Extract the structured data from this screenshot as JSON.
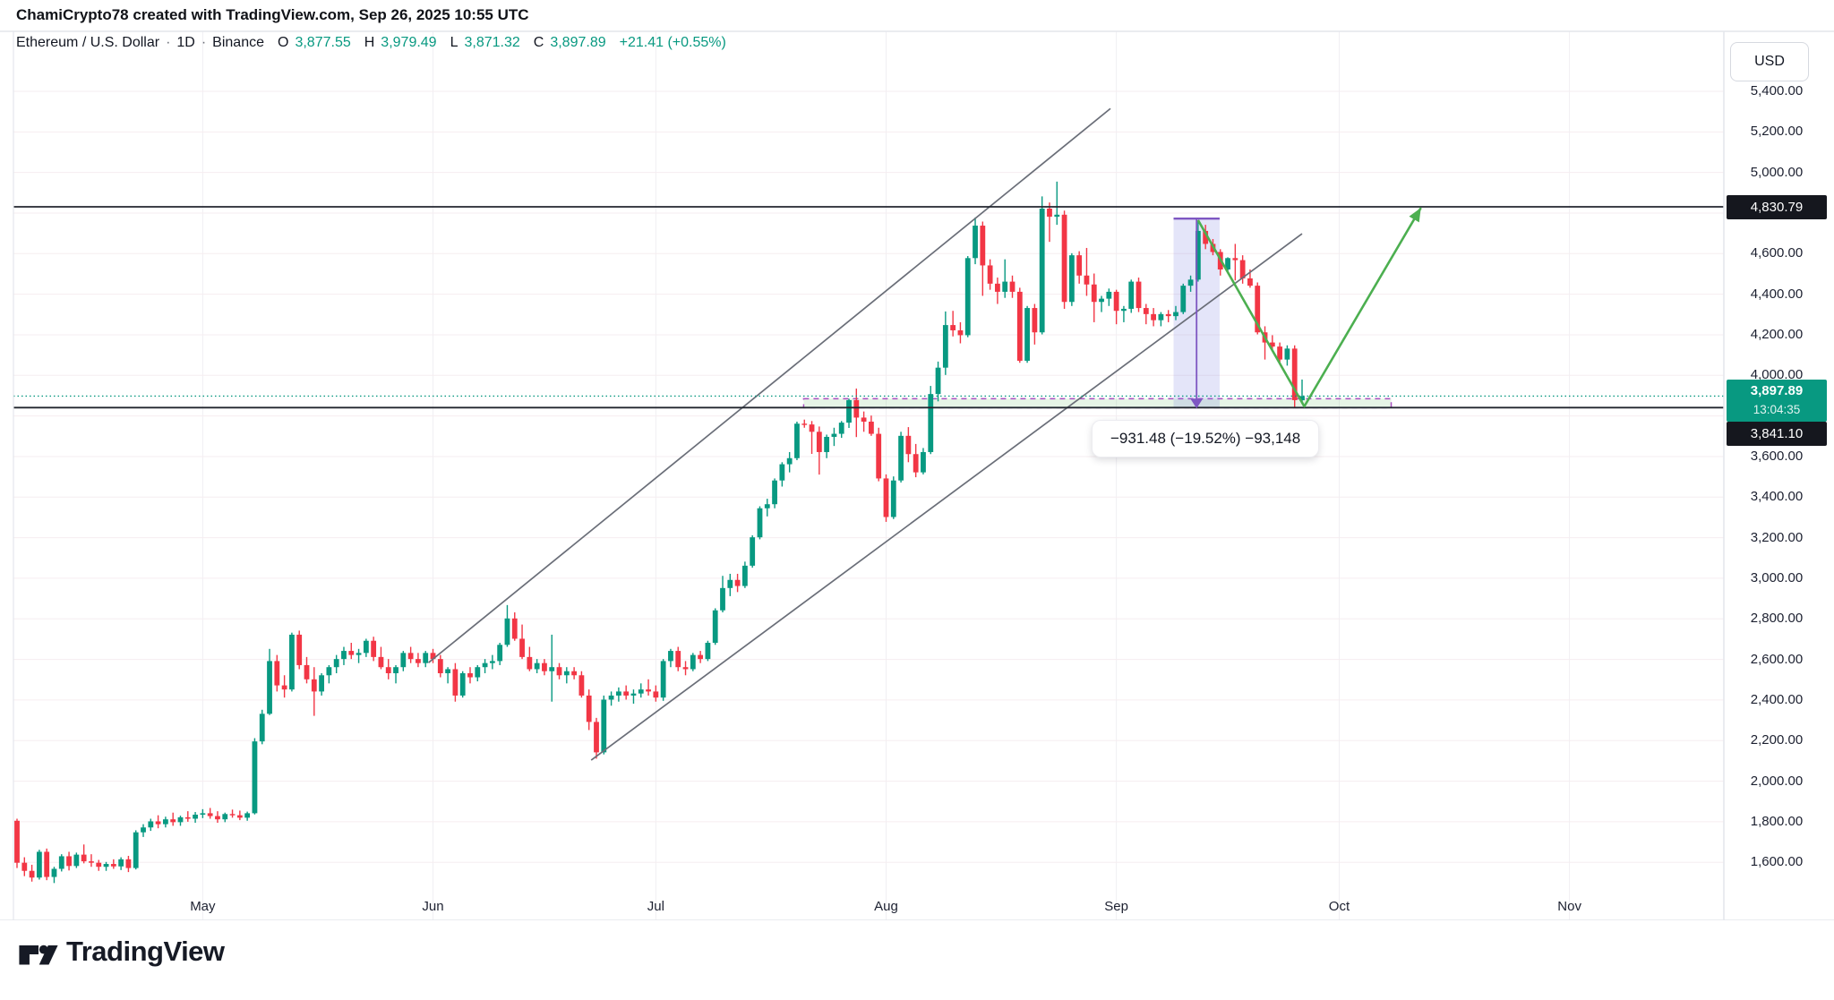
{
  "attribution": {
    "text": "ChamiCrypto78 created with TradingView.com, Sep 26, 2025 10:55 UTC"
  },
  "legend": {
    "symbol": "Ethereum / U.S. Dollar",
    "separator": "·",
    "interval": "1D",
    "exchange": "Binance",
    "o_label": "O",
    "o_value": "3,877.55",
    "h_label": "H",
    "h_value": "3,979.49",
    "l_label": "L",
    "l_value": "3,871.32",
    "c_label": "C",
    "c_value": "3,897.89",
    "change": "+21.41 (+0.55%)"
  },
  "price_axis": {
    "currency": "USD",
    "labels": [
      {
        "label": "5,400.00",
        "value": 5400
      },
      {
        "label": "5,200.00",
        "value": 5200
      },
      {
        "label": "5,000.00",
        "value": 5000
      },
      {
        "label": "4,600.00",
        "value": 4600
      },
      {
        "label": "4,400.00",
        "value": 4400
      },
      {
        "label": "4,200.00",
        "value": 4200
      },
      {
        "label": "4,000.00",
        "value": 4000
      },
      {
        "label": "3,600.00",
        "value": 3600
      },
      {
        "label": "3,400.00",
        "value": 3400
      },
      {
        "label": "3,200.00",
        "value": 3200
      },
      {
        "label": "3,000.00",
        "value": 3000
      },
      {
        "label": "2,800.00",
        "value": 2800
      },
      {
        "label": "2,600.00",
        "value": 2600
      },
      {
        "label": "2,400.00",
        "value": 2400
      },
      {
        "label": "2,200.00",
        "value": 2200
      },
      {
        "label": "2,000.00",
        "value": 2000
      },
      {
        "label": "1,800.00",
        "value": 1800
      },
      {
        "label": "1,600.00",
        "value": 1600
      }
    ],
    "badges": {
      "upper_line": "4,830.79",
      "last_price": "3,897.89",
      "countdown": "13:04:35",
      "lower_line": "3,841.10"
    }
  },
  "time_axis": {
    "months": [
      {
        "label": "May",
        "index": 25
      },
      {
        "label": "Jun",
        "index": 56
      },
      {
        "label": "Jul",
        "index": 86
      },
      {
        "label": "Aug",
        "index": 117
      },
      {
        "label": "Sep",
        "index": 148
      },
      {
        "label": "Oct",
        "index": 178
      },
      {
        "label": "Nov",
        "index": 209
      }
    ]
  },
  "tooltip": {
    "text": "−931.48 (−19.52%) −93,148"
  },
  "footer": {
    "brand": "TradingView",
    "logo_icon": "tradingview-logo"
  },
  "chart_data": {
    "type": "candlestick",
    "title": "Ethereum / U.S. Dollar",
    "interval": "1D",
    "exchange": "Binance",
    "start_date": "2025-04-06",
    "end_date": "2025-09-26",
    "ylim": [
      1314,
      5695
    ],
    "grid": {
      "h_step": 200,
      "h_min": 1600,
      "h_max": 5400
    },
    "legend_position": "top-left",
    "colors": {
      "up": "#089981",
      "down": "#f23645",
      "grid_h": "#f6edf0",
      "grid_v": "#f0eff3",
      "border": "#e4e6ec",
      "black_line": "#22262f",
      "trend": "#6a6e78",
      "projection": "#4caf50",
      "zone_fill": "rgba(76,175,80,0.14)",
      "zone_border": "#a84fc0",
      "measure_fill": "rgba(108,112,222,0.18)",
      "measure_line": "#7e57c2",
      "current_line": "#089981"
    },
    "drawings": {
      "upper_trendline": {
        "from": [
          55.4,
          2584
        ],
        "to": [
          147.2,
          5315
        ]
      },
      "lower_trendline": {
        "from": [
          77.3,
          2104
        ],
        "to": [
          173.0,
          4698
        ]
      },
      "hline_upper": 4830.79,
      "hline_lower": 3841.1,
      "current_price_line": 3897.89,
      "support_zone": {
        "from_index": 105.9,
        "to_index": 185.0,
        "price_top": 3885,
        "price_bottom": 3841
      },
      "measurement": {
        "from_index": 155.7,
        "to_index": 161.9,
        "price_top": 4772.58,
        "price_bottom": 3841.1,
        "result": "−931.48 (−19.52%) −93,148"
      },
      "projection_path": [
        [
          159.0,
          4765
        ],
        [
          173.3,
          3847
        ],
        [
          189.0,
          4826
        ]
      ]
    },
    "candles": [
      [
        1805,
        1815,
        1572,
        1598
      ],
      [
        1598,
        1625,
        1532,
        1558
      ],
      [
        1558,
        1588,
        1505,
        1525
      ],
      [
        1525,
        1662,
        1515,
        1652
      ],
      [
        1652,
        1668,
        1512,
        1528
      ],
      [
        1528,
        1578,
        1498,
        1568
      ],
      [
        1568,
        1640,
        1555,
        1630
      ],
      [
        1630,
        1652,
        1560,
        1582
      ],
      [
        1582,
        1648,
        1572,
        1638
      ],
      [
        1638,
        1688,
        1595,
        1605
      ],
      [
        1605,
        1640,
        1578,
        1598
      ],
      [
        1598,
        1612,
        1558,
        1578
      ],
      [
        1578,
        1602,
        1558,
        1592
      ],
      [
        1592,
        1615,
        1568,
        1580
      ],
      [
        1580,
        1625,
        1562,
        1615
      ],
      [
        1615,
        1632,
        1552,
        1572
      ],
      [
        1572,
        1758,
        1565,
        1748
      ],
      [
        1748,
        1788,
        1725,
        1772
      ],
      [
        1772,
        1815,
        1755,
        1802
      ],
      [
        1802,
        1832,
        1768,
        1788
      ],
      [
        1788,
        1825,
        1772,
        1812
      ],
      [
        1812,
        1845,
        1780,
        1798
      ],
      [
        1798,
        1830,
        1780,
        1822
      ],
      [
        1822,
        1852,
        1800,
        1815
      ],
      [
        1815,
        1848,
        1795,
        1835
      ],
      [
        1835,
        1862,
        1818,
        1842
      ],
      [
        1842,
        1868,
        1815,
        1828
      ],
      [
        1828,
        1852,
        1795,
        1812
      ],
      [
        1812,
        1845,
        1798,
        1838
      ],
      [
        1838,
        1860,
        1820,
        1832
      ],
      [
        1832,
        1855,
        1808,
        1820
      ],
      [
        1820,
        1850,
        1805,
        1842
      ],
      [
        1842,
        2212,
        1836,
        2196
      ],
      [
        2196,
        2352,
        2182,
        2332
      ],
      [
        2332,
        2652,
        2326,
        2592
      ],
      [
        2592,
        2622,
        2442,
        2472
      ],
      [
        2472,
        2522,
        2412,
        2452
      ],
      [
        2452,
        2732,
        2442,
        2722
      ],
      [
        2722,
        2742,
        2552,
        2572
      ],
      [
        2572,
        2612,
        2482,
        2502
      ],
      [
        2502,
        2562,
        2322,
        2442
      ],
      [
        2442,
        2532,
        2422,
        2522
      ],
      [
        2522,
        2572,
        2482,
        2562
      ],
      [
        2562,
        2622,
        2532,
        2602
      ],
      [
        2602,
        2662,
        2572,
        2642
      ],
      [
        2642,
        2682,
        2602,
        2622
      ],
      [
        2622,
        2652,
        2582,
        2632
      ],
      [
        2632,
        2702,
        2612,
        2692
      ],
      [
        2692,
        2712,
        2592,
        2612
      ],
      [
        2612,
        2662,
        2552,
        2562
      ],
      [
        2562,
        2602,
        2502,
        2532
      ],
      [
        2532,
        2572,
        2482,
        2562
      ],
      [
        2562,
        2642,
        2542,
        2632
      ],
      [
        2632,
        2662,
        2582,
        2602
      ],
      [
        2602,
        2632,
        2562,
        2582
      ],
      [
        2582,
        2642,
        2562,
        2632
      ],
      [
        2632,
        2652,
        2582,
        2602
      ],
      [
        2602,
        2622,
        2512,
        2532
      ],
      [
        2532,
        2562,
        2482,
        2552
      ],
      [
        2552,
        2582,
        2392,
        2422
      ],
      [
        2422,
        2542,
        2412,
        2532
      ],
      [
        2532,
        2562,
        2482,
        2512
      ],
      [
        2512,
        2572,
        2492,
        2562
      ],
      [
        2562,
        2602,
        2532,
        2582
      ],
      [
        2582,
        2622,
        2552,
        2592
      ],
      [
        2592,
        2682,
        2572,
        2672
      ],
      [
        2672,
        2868,
        2662,
        2802
      ],
      [
        2802,
        2832,
        2692,
        2702
      ],
      [
        2702,
        2772,
        2602,
        2612
      ],
      [
        2612,
        2662,
        2542,
        2552
      ],
      [
        2552,
        2602,
        2532,
        2582
      ],
      [
        2582,
        2602,
        2522,
        2542
      ],
      [
        2542,
        2722,
        2392,
        2562
      ],
      [
        2562,
        2582,
        2502,
        2522
      ],
      [
        2522,
        2562,
        2482,
        2542
      ],
      [
        2542,
        2562,
        2502,
        2522
      ],
      [
        2522,
        2542,
        2412,
        2422
      ],
      [
        2422,
        2452,
        2252,
        2292
      ],
      [
        2292,
        2312,
        2111,
        2142
      ],
      [
        2142,
        2422,
        2132,
        2402
      ],
      [
        2402,
        2442,
        2372,
        2422
      ],
      [
        2422,
        2462,
        2392,
        2442
      ],
      [
        2442,
        2472,
        2402,
        2422
      ],
      [
        2422,
        2452,
        2382,
        2432
      ],
      [
        2432,
        2482,
        2412,
        2452
      ],
      [
        2452,
        2502,
        2422,
        2442
      ],
      [
        2442,
        2472,
        2392,
        2412
      ],
      [
        2412,
        2602,
        2396,
        2592
      ],
      [
        2592,
        2652,
        2562,
        2642
      ],
      [
        2642,
        2662,
        2542,
        2562
      ],
      [
        2562,
        2592,
        2522,
        2552
      ],
      [
        2552,
        2632,
        2542,
        2622
      ],
      [
        2622,
        2642,
        2582,
        2602
      ],
      [
        2602,
        2692,
        2592,
        2682
      ],
      [
        2682,
        2852,
        2672,
        2842
      ],
      [
        2842,
        3012,
        2832,
        2952
      ],
      [
        2952,
        3022,
        2912,
        2992
      ],
      [
        2992,
        3022,
        2932,
        2962
      ],
      [
        2962,
        3082,
        2952,
        3062
      ],
      [
        3062,
        3212,
        3052,
        3202
      ],
      [
        3202,
        3355,
        3192,
        3345
      ],
      [
        3345,
        3392,
        3305,
        3365
      ],
      [
        3365,
        3492,
        3345,
        3482
      ],
      [
        3482,
        3572,
        3452,
        3562
      ],
      [
        3562,
        3622,
        3522,
        3592
      ],
      [
        3592,
        3772,
        3582,
        3762
      ],
      [
        3762,
        3782,
        3742,
        3758
      ],
      [
        3758,
        3775,
        3613,
        3722
      ],
      [
        3722,
        3748,
        3511,
        3622
      ],
      [
        3622,
        3708,
        3592,
        3697
      ],
      [
        3697,
        3742,
        3652,
        3712
      ],
      [
        3712,
        3775,
        3692,
        3767
      ],
      [
        3767,
        3885,
        3741,
        3878
      ],
      [
        3878,
        3935,
        3696,
        3792
      ],
      [
        3792,
        3822,
        3722,
        3772
      ],
      [
        3772,
        3802,
        3702,
        3712
      ],
      [
        3712,
        3742,
        3478,
        3492
      ],
      [
        3492,
        3512,
        3278,
        3302
      ],
      [
        3302,
        3502,
        3292,
        3482
      ],
      [
        3482,
        3722,
        3472,
        3702
      ],
      [
        3702,
        3745,
        3572,
        3612
      ],
      [
        3612,
        3662,
        3498,
        3522
      ],
      [
        3522,
        3642,
        3512,
        3622
      ],
      [
        3622,
        3948,
        3612,
        3908
      ],
      [
        3908,
        4068,
        3872,
        4038
      ],
      [
        4038,
        4315,
        4002,
        4248
      ],
      [
        4248,
        4318,
        4192,
        4222
      ],
      [
        4222,
        4262,
        4158,
        4198
      ],
      [
        4198,
        4588,
        4188,
        4578
      ],
      [
        4578,
        4778,
        4548,
        4738
      ],
      [
        4738,
        4758,
        4392,
        4542
      ],
      [
        4542,
        4572,
        4422,
        4452
      ],
      [
        4452,
        4482,
        4352,
        4412
      ],
      [
        4412,
        4572,
        4382,
        4462
      ],
      [
        4462,
        4492,
        4382,
        4412
      ],
      [
        4412,
        4432,
        4062,
        4072
      ],
      [
        4072,
        4342,
        4062,
        4332
      ],
      [
        4332,
        4352,
        4152,
        4212
      ],
      [
        4212,
        4882,
        4202,
        4822
      ],
      [
        4822,
        4852,
        4658,
        4782
      ],
      [
        4782,
        4955,
        4742,
        4792
      ],
      [
        4792,
        4812,
        4328,
        4362
      ],
      [
        4362,
        4602,
        4342,
        4592
      ],
      [
        4592,
        4612,
        4452,
        4492
      ],
      [
        4492,
        4628,
        4392,
        4448
      ],
      [
        4448,
        4502,
        4262,
        4362
      ],
      [
        4362,
        4392,
        4312,
        4378
      ],
      [
        4378,
        4428,
        4342,
        4412
      ],
      [
        4412,
        4422,
        4252,
        4318
      ],
      [
        4318,
        4342,
        4262,
        4328
      ],
      [
        4328,
        4472,
        4308,
        4462
      ],
      [
        4462,
        4482,
        4312,
        4332
      ],
      [
        4332,
        4352,
        4252,
        4302
      ],
      [
        4302,
        4332,
        4242,
        4272
      ],
      [
        4272,
        4312,
        4242,
        4302
      ],
      [
        4302,
        4322,
        4262,
        4292
      ],
      [
        4292,
        4342,
        4272,
        4312
      ],
      [
        4312,
        4452,
        4302,
        4442
      ],
      [
        4442,
        4492,
        4412,
        4472
      ],
      [
        4472,
        4762,
        4462,
        4712
      ],
      [
        4712,
        4742,
        4622,
        4648
      ],
      [
        4648,
        4672,
        4592,
        4608
      ],
      [
        4608,
        4622,
        4492,
        4522
      ],
      [
        4522,
        4582,
        4502,
        4578
      ],
      [
        4578,
        4648,
        4468,
        4568
      ],
      [
        4568,
        4592,
        4452,
        4478
      ],
      [
        4478,
        4522,
        4432,
        4442
      ],
      [
        4442,
        4458,
        4202,
        4212
      ],
      [
        4212,
        4242,
        4078,
        4162
      ],
      [
        4162,
        4198,
        4122,
        4142
      ],
      [
        4142,
        4162,
        4058,
        4078
      ],
      [
        4078,
        4148,
        4048,
        4132
      ],
      [
        4132,
        4148,
        3841,
        3878
      ],
      [
        3877.55,
        3979.49,
        3871.32,
        3897.89
      ]
    ]
  }
}
